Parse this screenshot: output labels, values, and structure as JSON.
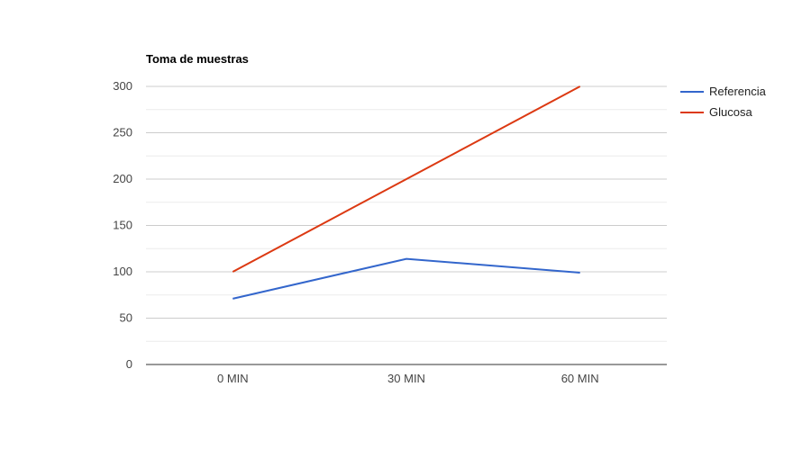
{
  "chart_data": {
    "type": "line",
    "title": "Toma de muestras",
    "categories": [
      "0 MIN",
      "30 MIN",
      "60 MIN"
    ],
    "series": [
      {
        "name": "Referencia",
        "values": [
          71,
          114,
          99
        ],
        "color": "#3366cc"
      },
      {
        "name": "Glucosa",
        "values": [
          100,
          200,
          300
        ],
        "color": "#dc3912"
      }
    ],
    "ylim": [
      0,
      300
    ],
    "yticks": [
      0,
      50,
      100,
      150,
      200,
      250,
      300
    ],
    "minor_grid": true,
    "grid": true,
    "legend_position": "right",
    "colors": {
      "major_grid": "#cccccc",
      "minor_grid": "#ebebeb",
      "axis": "#333333"
    }
  }
}
